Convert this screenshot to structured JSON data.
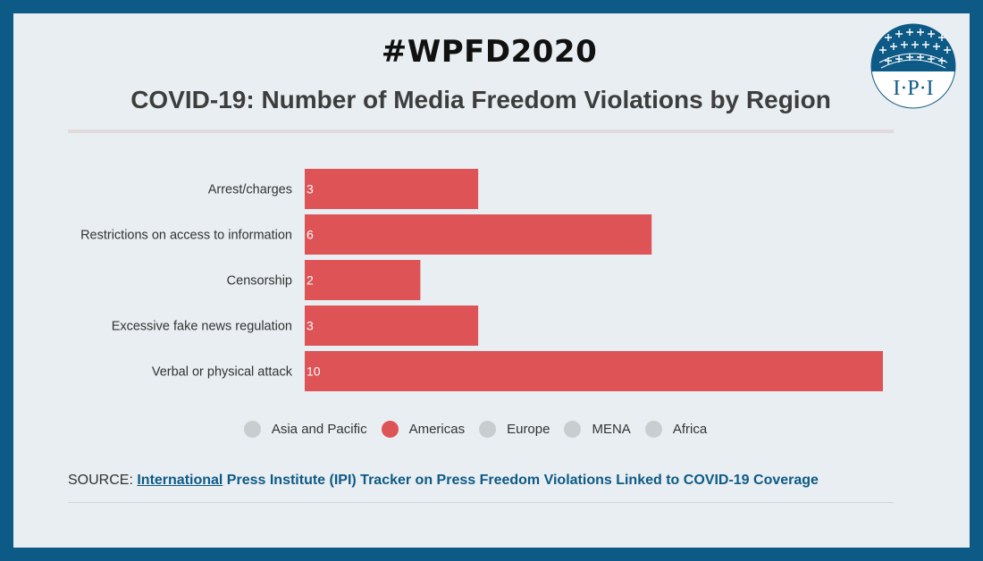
{
  "header": {
    "hashtag": "#WPFD2020",
    "title": "COVID-19: Number of Media Freedom Violations by Region"
  },
  "logo": {
    "text": "I·P·I"
  },
  "chart_data": {
    "type": "bar",
    "orientation": "horizontal",
    "categories": [
      "Arrest/charges",
      "Restrictions on access to information",
      "Censorship",
      "Excessive fake news regulation",
      "Verbal or physical attack"
    ],
    "series": [
      {
        "name": "Americas",
        "values": [
          3,
          6,
          2,
          3,
          10
        ]
      }
    ],
    "xlim": [
      0,
      10
    ],
    "grid": false,
    "legend_placement": "bottom",
    "bar_color": "#de5356"
  },
  "legend": [
    {
      "label": "Asia and Pacific",
      "color": "#c8cdd0"
    },
    {
      "label": "Americas",
      "color": "#de5356"
    },
    {
      "label": "Europe",
      "color": "#c8cdd0"
    },
    {
      "label": "MENA",
      "color": "#c8cdd0"
    },
    {
      "label": "Africa",
      "color": "#c8cdd0"
    }
  ],
  "source": {
    "prefix": "SOURCE: ",
    "link_text": "International",
    "rest": " Press Institute (IPI) Tracker on Press Freedom Violations Linked to COVID-19 Coverage"
  }
}
